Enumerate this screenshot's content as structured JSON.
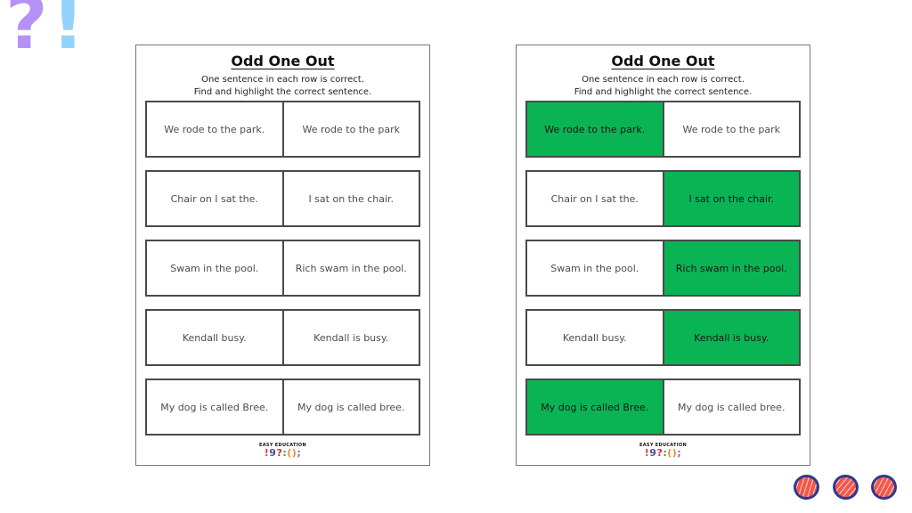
{
  "decorations": {
    "question_mark": "?",
    "exclamation_mark": "!",
    "question_color": "#b592f5",
    "exclamation_color": "#93d3fb"
  },
  "colors": {
    "highlight_green": "#0ab454",
    "sticker_ring": "#2e3a8c",
    "sticker_fill": "#f4574b"
  },
  "logo": {
    "text": "EASY EDUCATION",
    "symbols": [
      {
        "char": "!",
        "color": "#e8374d"
      },
      {
        "char": "9",
        "color": "#4f4f9e"
      },
      {
        "char": "?",
        "color": "#d62839"
      },
      {
        "char": ":",
        "color": "#2f9e44"
      },
      {
        "char": "(",
        "color": "#f08c2e"
      },
      {
        "char": ")",
        "color": "#f08c2e"
      },
      {
        "char": ";",
        "color": "#7a5fd0"
      }
    ]
  },
  "worksheets": [
    {
      "title": "Odd One Out",
      "instr1": "One sentence in each row is correct.",
      "instr2": "Find and highlight the correct sentence.",
      "rows": [
        {
          "left": "We rode to the park.",
          "right": "We rode to the park",
          "highlight": "none"
        },
        {
          "left": "Chair on I sat the.",
          "right": "I sat on the chair.",
          "highlight": "none"
        },
        {
          "left": "Swam in the pool.",
          "right": "Rich swam in the pool.",
          "highlight": "none"
        },
        {
          "left": "Kendall busy.",
          "right": "Kendall is busy.",
          "highlight": "none"
        },
        {
          "left": "My dog is called Bree.",
          "right": "My dog is called bree.",
          "highlight": "none"
        }
      ]
    },
    {
      "title": "Odd One Out",
      "instr1": "One sentence in each row is correct.",
      "instr2": "Find and highlight the correct sentence.",
      "rows": [
        {
          "left": "We rode to the park.",
          "right": "We rode to the park",
          "highlight": "left"
        },
        {
          "left": "Chair on I sat the.",
          "right": "I sat on the chair.",
          "highlight": "right"
        },
        {
          "left": "Swam in the pool.",
          "right": "Rich swam in the pool.",
          "highlight": "right"
        },
        {
          "left": "Kendall busy.",
          "right": "Kendall is busy.",
          "highlight": "right"
        },
        {
          "left": "My dog is called Bree.",
          "right": "My dog is called bree.",
          "highlight": "left"
        }
      ]
    }
  ]
}
